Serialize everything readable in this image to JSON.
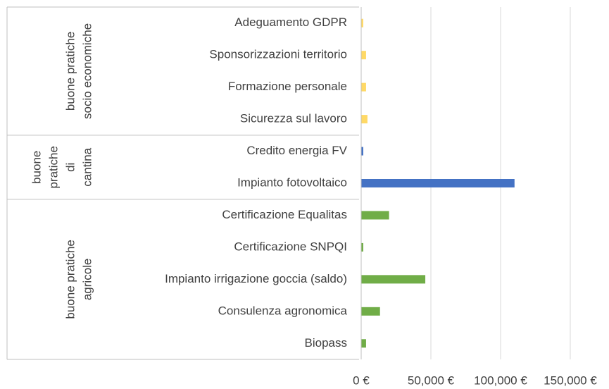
{
  "chart_data": {
    "type": "bar",
    "groups": [
      {
        "label": [
          "buone pratiche",
          "socio economiche"
        ],
        "color": "#ffd966",
        "categories": [
          "Adeguamento GDPR",
          "Sponsorizzazioni territorio",
          "Formazione personale",
          "Sicurezza sul lavoro"
        ],
        "values": [
          1500,
          3500,
          3500,
          4500
        ]
      },
      {
        "label": [
          "buone",
          "pratiche",
          "di",
          "cantina"
        ],
        "color": "#4472c4",
        "categories": [
          "Credito energia FV",
          "Impianto fotovoltaico"
        ],
        "values": [
          1500,
          110000
        ]
      },
      {
        "label": [
          "buone pratiche",
          "agricole"
        ],
        "color": "#70ad47",
        "categories": [
          "Certificazione Equalitas",
          "Certificazione SNPQI",
          "Impianto irrigazione goccia (saldo)",
          "Consulenza agronomica",
          "Biopass"
        ],
        "values": [
          20000,
          1500,
          46000,
          13500,
          3500
        ]
      }
    ],
    "xlim": [
      0,
      150000
    ],
    "xticks": [
      {
        "value": 0,
        "label": "0 €"
      },
      {
        "value": 50000,
        "label": "50,000 €"
      },
      {
        "value": 100000,
        "label": "100,000 €"
      },
      {
        "value": 150000,
        "label": "150,000 €"
      }
    ],
    "grid": true
  }
}
